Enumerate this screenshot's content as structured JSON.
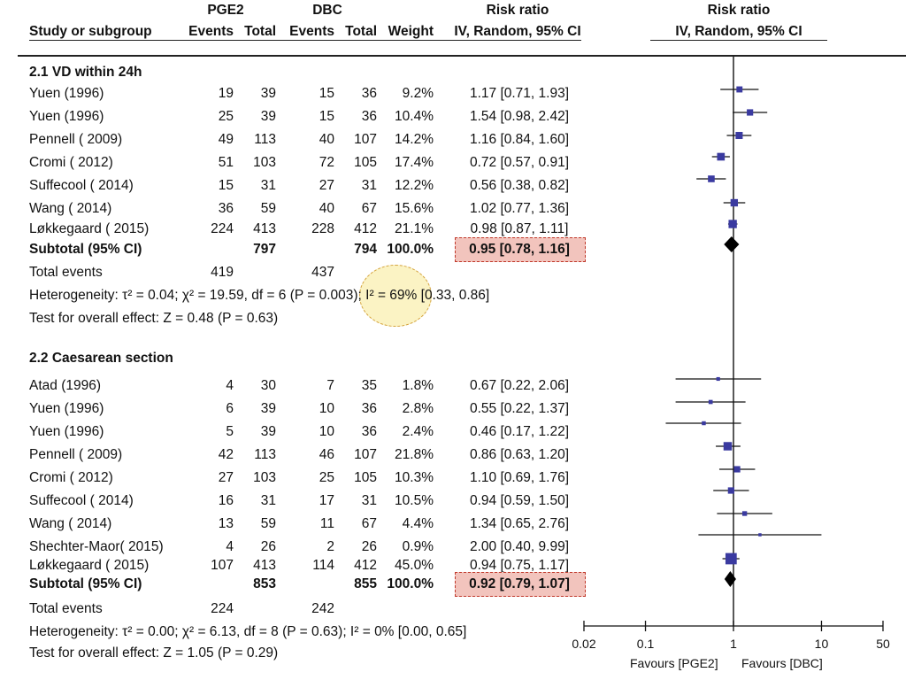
{
  "header": {
    "group1": "PGE2",
    "group2": "DBC",
    "rr_col": "Risk ratio",
    "rr_plot": "Risk ratio",
    "study_label": "Study or subgroup",
    "events1": "Events",
    "total1": "Total",
    "events2": "Events",
    "total2": "Total",
    "weight": "Weight",
    "method_col": "IV, Random, 95% CI",
    "method_plot": "IV, Random, 95% CI"
  },
  "section1": {
    "title": "2.1 VD within 24h",
    "subtotal": {
      "label": "Subtotal (95% CI)",
      "total1": "797",
      "total2": "794",
      "weight": "100.0%",
      "rr": "0.95 [0.78, 1.16]"
    },
    "total_events": {
      "label": "Total events",
      "e1": "419",
      "e2": "437"
    },
    "heterogeneity": "Heterogeneity: τ² = 0.04; χ² = 19.59, df = 6 (P = 0.003); I² = 69% [0.33, 0.86]",
    "overall": "Test for overall effect: Z = 0.48 (P = 0.63)"
  },
  "section2": {
    "title": "2.2 Caesarean section",
    "subtotal": {
      "label": "Subtotal (95% CI)",
      "total1": "853",
      "total2": "855",
      "weight": "100.0%",
      "rr": "0.92 [0.79, 1.07]"
    },
    "total_events": {
      "label": "Total events",
      "e1": "224",
      "e2": "242"
    },
    "heterogeneity": "Heterogeneity: τ² = 0.00; χ² = 6.13, df = 8 (P = 0.63); I² = 0% [0.00, 0.65]",
    "overall": "Test for overall effect: Z = 1.05 (P = 0.29)"
  },
  "chart_data": {
    "type": "forest",
    "title": "Risk ratio",
    "subtitle": "IV, Random, 95% CI",
    "x_scale": "log",
    "xlim": [
      0.02,
      50
    ],
    "x_ticks": [
      "0.02",
      "0.1",
      "1",
      "10",
      "50"
    ],
    "x_tick_values": [
      0.02,
      0.1,
      1,
      10,
      50
    ],
    "favours_left": "Favours [PGE2]",
    "favours_right": "Favours [DBC]",
    "subgroups": [
      {
        "name": "2.1 VD within 24h",
        "studies": [
          {
            "study": "Yuen (1996)",
            "e1": "19",
            "n1": "39",
            "e2": "15",
            "n2": "36",
            "weight": "9.2%",
            "w": 9.2,
            "rr": 1.17,
            "lo": 0.71,
            "hi": 1.93,
            "ci_text": "1.17 [0.71, 1.93]"
          },
          {
            "study": "Yuen (1996)",
            "e1": "25",
            "n1": "39",
            "e2": "15",
            "n2": "36",
            "weight": "10.4%",
            "w": 10.4,
            "rr": 1.54,
            "lo": 0.98,
            "hi": 2.42,
            "ci_text": "1.54 [0.98, 2.42]"
          },
          {
            "study": "Pennell ( 2009)",
            "e1": "49",
            "n1": "113",
            "e2": "40",
            "n2": "107",
            "weight": "14.2%",
            "w": 14.2,
            "rr": 1.16,
            "lo": 0.84,
            "hi": 1.6,
            "ci_text": "1.16 [0.84, 1.60]"
          },
          {
            "study": "Cromi ( 2012)",
            "e1": "51",
            "n1": "103",
            "e2": "72",
            "n2": "105",
            "weight": "17.4%",
            "w": 17.4,
            "rr": 0.72,
            "lo": 0.57,
            "hi": 0.91,
            "ci_text": "0.72 [0.57, 0.91]"
          },
          {
            "study": "Suffecool ( 2014)",
            "e1": "15",
            "n1": "31",
            "e2": "27",
            "n2": "31",
            "weight": "12.2%",
            "w": 12.2,
            "rr": 0.56,
            "lo": 0.38,
            "hi": 0.82,
            "ci_text": "0.56 [0.38, 0.82]"
          },
          {
            "study": "Wang ( 2014)",
            "e1": "36",
            "n1": "59",
            "e2": "40",
            "n2": "67",
            "weight": "15.6%",
            "w": 15.6,
            "rr": 1.02,
            "lo": 0.77,
            "hi": 1.36,
            "ci_text": "1.02 [0.77, 1.36]"
          },
          {
            "study": "Løkkegaard ( 2015)",
            "e1": "224",
            "n1": "413",
            "e2": "228",
            "n2": "412",
            "weight": "21.1%",
            "w": 21.1,
            "rr": 0.98,
            "lo": 0.87,
            "hi": 1.11,
            "ci_text": "0.98 [0.87, 1.11]"
          }
        ],
        "pooled": {
          "rr": 0.95,
          "lo": 0.78,
          "hi": 1.16
        }
      },
      {
        "name": "2.2 Caesarean section",
        "studies": [
          {
            "study": "Atad (1996)",
            "e1": "4",
            "n1": "30",
            "e2": "7",
            "n2": "35",
            "weight": "1.8%",
            "w": 1.8,
            "rr": 0.67,
            "lo": 0.22,
            "hi": 2.06,
            "ci_text": "0.67 [0.22, 2.06]"
          },
          {
            "study": "Yuen (1996)",
            "e1": "6",
            "n1": "39",
            "e2": "10",
            "n2": "36",
            "weight": "2.8%",
            "w": 2.8,
            "rr": 0.55,
            "lo": 0.22,
            "hi": 1.37,
            "ci_text": "0.55 [0.22, 1.37]"
          },
          {
            "study": "Yuen (1996)",
            "e1": "5",
            "n1": "39",
            "e2": "10",
            "n2": "36",
            "weight": "2.4%",
            "w": 2.4,
            "rr": 0.46,
            "lo": 0.17,
            "hi": 1.22,
            "ci_text": "0.46 [0.17, 1.22]"
          },
          {
            "study": "Pennell ( 2009)",
            "e1": "42",
            "n1": "113",
            "e2": "46",
            "n2": "107",
            "weight": "21.8%",
            "w": 21.8,
            "rr": 0.86,
            "lo": 0.63,
            "hi": 1.2,
            "ci_text": "0.86 [0.63, 1.20]"
          },
          {
            "study": "Cromi ( 2012)",
            "e1": "27",
            "n1": "103",
            "e2": "25",
            "n2": "105",
            "weight": "10.3%",
            "w": 10.3,
            "rr": 1.1,
            "lo": 0.69,
            "hi": 1.76,
            "ci_text": "1.10 [0.69, 1.76]"
          },
          {
            "study": "Suffecool ( 2014)",
            "e1": "16",
            "n1": "31",
            "e2": "17",
            "n2": "31",
            "weight": "10.5%",
            "w": 10.5,
            "rr": 0.94,
            "lo": 0.59,
            "hi": 1.5,
            "ci_text": "0.94 [0.59, 1.50]"
          },
          {
            "study": "Wang ( 2014)",
            "e1": "13",
            "n1": "59",
            "e2": "11",
            "n2": "67",
            "weight": "4.4%",
            "w": 4.4,
            "rr": 1.34,
            "lo": 0.65,
            "hi": 2.76,
            "ci_text": "1.34 [0.65, 2.76]"
          },
          {
            "study": "Shechter-Maor( 2015)",
            "e1": "4",
            "n1": "26",
            "e2": "2",
            "n2": "26",
            "weight": "0.9%",
            "w": 0.9,
            "rr": 2.0,
            "lo": 0.4,
            "hi": 9.99,
            "ci_text": "2.00 [0.40, 9.99]"
          },
          {
            "study": "Løkkegaard ( 2015)",
            "e1": "107",
            "n1": "413",
            "e2": "114",
            "n2": "412",
            "weight": "45.0%",
            "w": 45.0,
            "rr": 0.94,
            "lo": 0.75,
            "hi": 1.17,
            "ci_text": "0.94 [0.75, 1.17]"
          }
        ],
        "pooled": {
          "rr": 0.92,
          "lo": 0.79,
          "hi": 1.07
        }
      }
    ]
  },
  "colors": {
    "marker": "#3a3aa0",
    "highlight": "#f2c4bd",
    "highlight_border": "#c0392b",
    "ellipse": "#fbf3c4"
  }
}
